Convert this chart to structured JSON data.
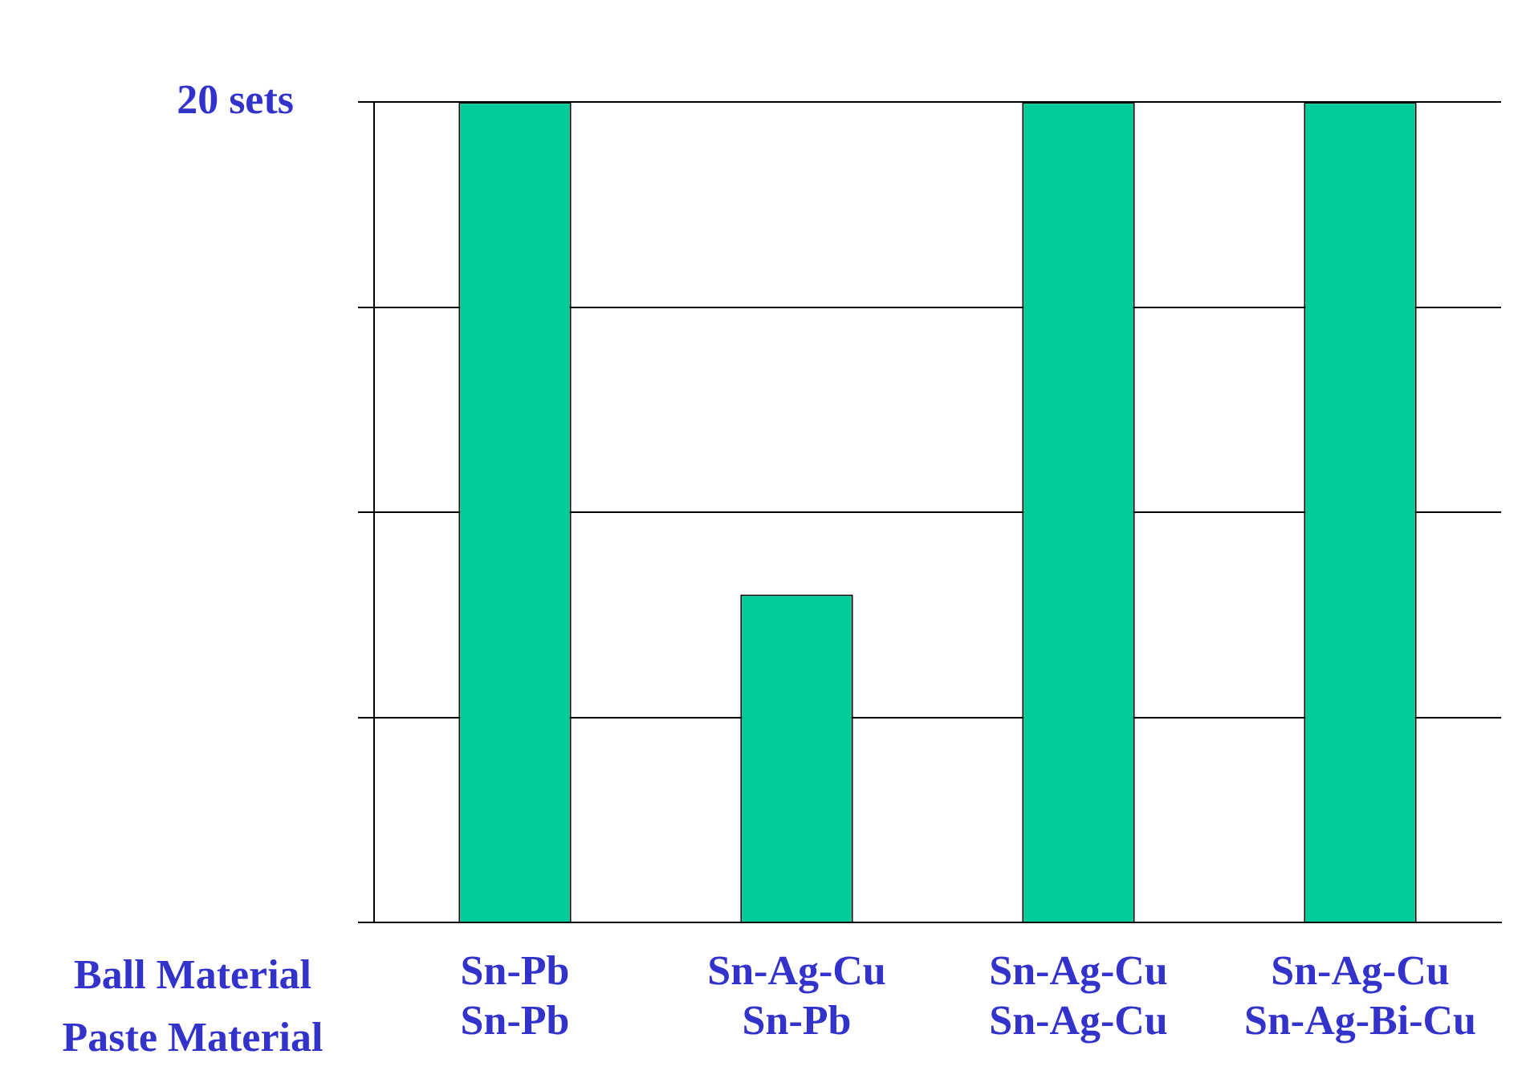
{
  "chart_data": {
    "type": "bar",
    "xlabel": "Ball Material\nPaste Material",
    "categories": [
      "Sn-Pb\nSn-Pb",
      "Sn-Ag-Cu\nSn-Pb",
      "Sn-Ag-Cu\nSn-Ag-Cu",
      "Sn-Ag-Cu\nSn-Ag-Bi-Cu"
    ],
    "values": [
      20,
      8,
      20,
      20
    ],
    "color": "#00cc99",
    "ylim": [
      0,
      20
    ],
    "yticks": [
      {
        "value": 0,
        "label": null
      },
      {
        "value": 5,
        "label": null
      },
      {
        "value": 10,
        "label": null
      },
      {
        "value": 15,
        "label": null
      },
      {
        "value": 20,
        "label": "20 sets"
      }
    ],
    "grid": "y",
    "legend": false
  }
}
